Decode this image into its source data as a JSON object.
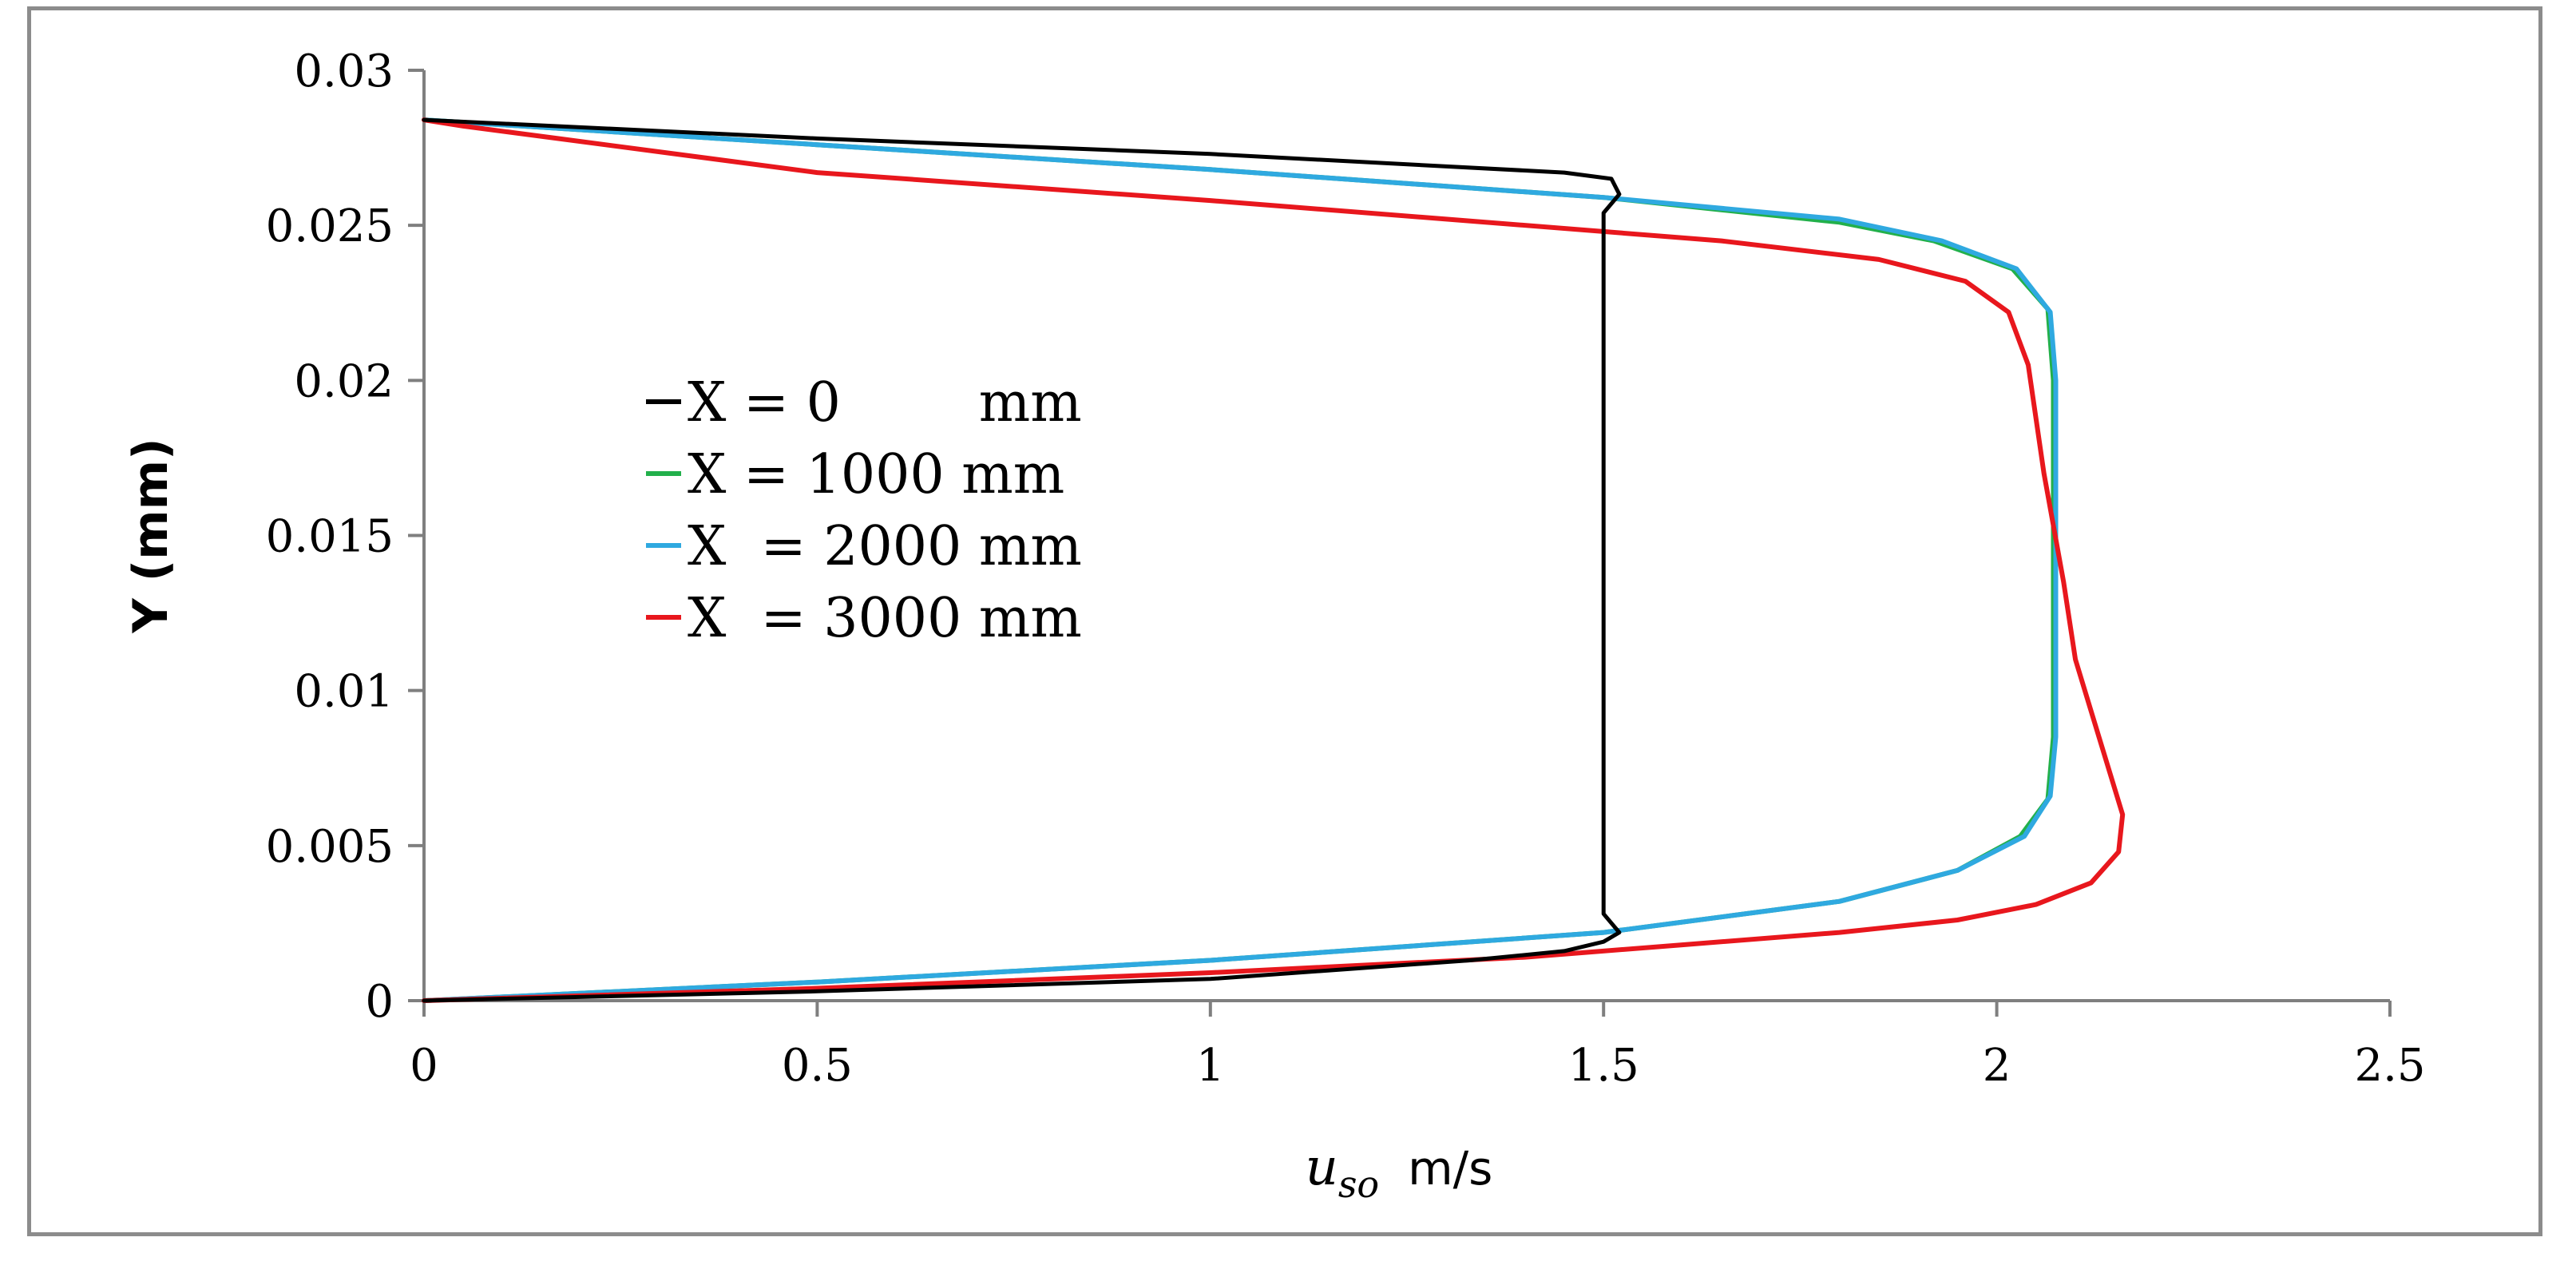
{
  "chart_data": {
    "type": "line",
    "title": "",
    "xlabel": {
      "symbol": "u",
      "subscript": "so",
      "unit": "m/s"
    },
    "ylabel": "Y (mm)",
    "xlim": [
      0,
      2.5
    ],
    "ylim": [
      0,
      0.03
    ],
    "xticks": [
      "0",
      "0.5",
      "1",
      "1.5",
      "2",
      "2.5"
    ],
    "yticks": [
      "0",
      "0.005",
      "0.01",
      "0.015",
      "0.02",
      "0.025",
      "0.03"
    ],
    "grid": false,
    "legend_position": "center-left",
    "series": [
      {
        "name": "X = 0        mm",
        "color": "#000000",
        "points": [
          [
            0,
            0
          ],
          [
            0.5,
            0.0003
          ],
          [
            1.0,
            0.0007
          ],
          [
            1.33,
            0.0013
          ],
          [
            1.45,
            0.0016
          ],
          [
            1.5,
            0.0019
          ],
          [
            1.52,
            0.0022
          ],
          [
            1.5,
            0.0028
          ],
          [
            1.5,
            0.014
          ],
          [
            1.5,
            0.0254
          ],
          [
            1.52,
            0.026
          ],
          [
            1.51,
            0.0265
          ],
          [
            1.45,
            0.0267
          ],
          [
            1.0,
            0.0273
          ],
          [
            0.5,
            0.0278
          ],
          [
            0,
            0.0284
          ]
        ]
      },
      {
        "name": "X = 1000 mm",
        "color": "#22b04b",
        "points": [
          [
            0,
            0
          ],
          [
            0.5,
            0.0006
          ],
          [
            1.0,
            0.0013
          ],
          [
            1.5,
            0.0022
          ],
          [
            1.8,
            0.0032
          ],
          [
            1.95,
            0.0042
          ],
          [
            2.03,
            0.0053
          ],
          [
            2.065,
            0.0065
          ],
          [
            2.072,
            0.0085
          ],
          [
            2.072,
            0.0155
          ],
          [
            2.072,
            0.02
          ],
          [
            2.065,
            0.0223
          ],
          [
            2.02,
            0.0236
          ],
          [
            1.92,
            0.0245
          ],
          [
            1.8,
            0.0251
          ],
          [
            1.5,
            0.0259
          ],
          [
            1.0,
            0.0268
          ],
          [
            0.5,
            0.0276
          ],
          [
            0,
            0.0284
          ]
        ]
      },
      {
        "name": "X  = 2000 mm",
        "color": "#2fa9e0",
        "points": [
          [
            0,
            0
          ],
          [
            0.5,
            0.0006
          ],
          [
            1.0,
            0.0013
          ],
          [
            1.5,
            0.0022
          ],
          [
            1.8,
            0.0032
          ],
          [
            1.95,
            0.0042
          ],
          [
            2.035,
            0.0053
          ],
          [
            2.068,
            0.0066
          ],
          [
            2.075,
            0.0085
          ],
          [
            2.075,
            0.0155
          ],
          [
            2.075,
            0.02
          ],
          [
            2.068,
            0.0222
          ],
          [
            2.025,
            0.0236
          ],
          [
            1.93,
            0.0245
          ],
          [
            1.8,
            0.0252
          ],
          [
            1.5,
            0.0259
          ],
          [
            1.0,
            0.0268
          ],
          [
            0.5,
            0.0276
          ],
          [
            0,
            0.0284
          ]
        ]
      },
      {
        "name": "X  = 3000 mm",
        "color": "#e8171d",
        "points": [
          [
            0,
            0
          ],
          [
            0.5,
            0.0004
          ],
          [
            1.0,
            0.0009
          ],
          [
            1.4,
            0.0014
          ],
          [
            1.6,
            0.0018
          ],
          [
            1.8,
            0.0022
          ],
          [
            1.95,
            0.0026
          ],
          [
            2.05,
            0.0031
          ],
          [
            2.12,
            0.0038
          ],
          [
            2.155,
            0.0048
          ],
          [
            2.16,
            0.006
          ],
          [
            2.13,
            0.0085
          ],
          [
            2.1,
            0.011
          ],
          [
            2.085,
            0.0135
          ],
          [
            2.06,
            0.017
          ],
          [
            2.04,
            0.0205
          ],
          [
            2.015,
            0.0222
          ],
          [
            1.96,
            0.0232
          ],
          [
            1.85,
            0.0239
          ],
          [
            1.65,
            0.0245
          ],
          [
            1.3,
            0.0252
          ],
          [
            1.0,
            0.0258
          ],
          [
            0.5,
            0.0267
          ],
          [
            0.17,
            0.0278
          ],
          [
            0.05,
            0.0282
          ],
          [
            0,
            0.0284
          ]
        ]
      }
    ]
  }
}
